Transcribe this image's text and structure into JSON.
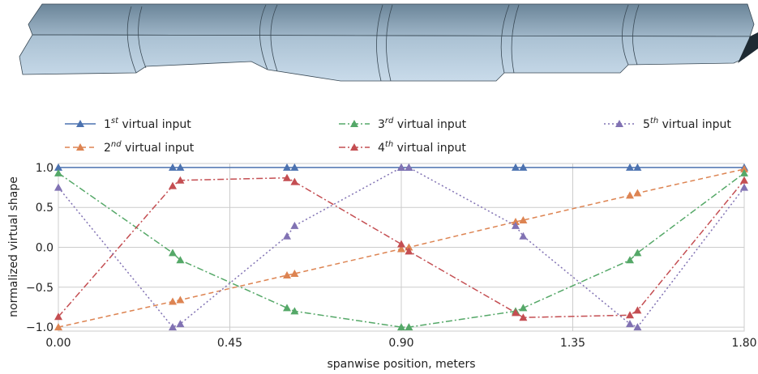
{
  "chart_data": {
    "type": "line",
    "xlabel": "spanwise position, meters",
    "ylabel": "normalized virtual shape",
    "xlim": [
      0.0,
      1.8
    ],
    "ylim": [
      -1.05,
      1.05
    ],
    "xticks": [
      "0.00",
      "0.45",
      "0.90",
      "1.35",
      "1.80"
    ],
    "xtick_values": [
      0.0,
      0.45,
      0.9,
      1.35,
      1.8
    ],
    "yticks": [
      "1.0",
      "0.5",
      "0.0",
      "−0.5",
      "−1.0"
    ],
    "ytick_values": [
      1.0,
      0.5,
      0.0,
      -0.5,
      -1.0
    ],
    "grid": true,
    "legend_placement": "above plot",
    "x": [
      0.0,
      0.3,
      0.32,
      0.6,
      0.62,
      0.9,
      0.92,
      1.2,
      1.22,
      1.5,
      1.52,
      1.8
    ],
    "series": [
      {
        "name_prefix": "1",
        "name_sup": "st",
        "name_suffix": " virtual input",
        "color": "#4c72b0",
        "dash": "solid",
        "values": [
          1.0,
          1.0,
          1.0,
          1.0,
          1.0,
          1.0,
          1.0,
          1.0,
          1.0,
          1.0,
          1.0,
          1.0
        ]
      },
      {
        "name_prefix": "2",
        "name_sup": "nd",
        "name_suffix": " virtual input",
        "color": "#dd8452",
        "dash": "dashed",
        "values": [
          -1.0,
          -0.68,
          -0.66,
          -0.35,
          -0.33,
          -0.02,
          0.0,
          0.32,
          0.34,
          0.65,
          0.68,
          0.98
        ]
      },
      {
        "name_prefix": "3",
        "name_sup": "rd",
        "name_suffix": " virtual input",
        "color": "#55a868",
        "dash": "dashdot",
        "values": [
          0.93,
          -0.07,
          -0.16,
          -0.76,
          -0.8,
          -1.0,
          -1.0,
          -0.8,
          -0.76,
          -0.16,
          -0.07,
          0.93
        ]
      },
      {
        "name_prefix": "4",
        "name_sup": "th",
        "name_suffix": " virtual input",
        "color": "#c44e52",
        "dash": "dashdot",
        "values": [
          -0.87,
          0.77,
          0.84,
          0.87,
          0.82,
          0.04,
          -0.05,
          -0.82,
          -0.88,
          -0.85,
          -0.79,
          0.84
        ]
      },
      {
        "name_prefix": "5",
        "name_sup": "th",
        "name_suffix": " virtual input",
        "color": "#8172b3",
        "dash": "dotted",
        "values": [
          0.75,
          -1.0,
          -0.96,
          0.14,
          0.27,
          1.0,
          1.0,
          0.27,
          0.14,
          -0.96,
          -1.0,
          0.75
        ]
      }
    ]
  }
}
